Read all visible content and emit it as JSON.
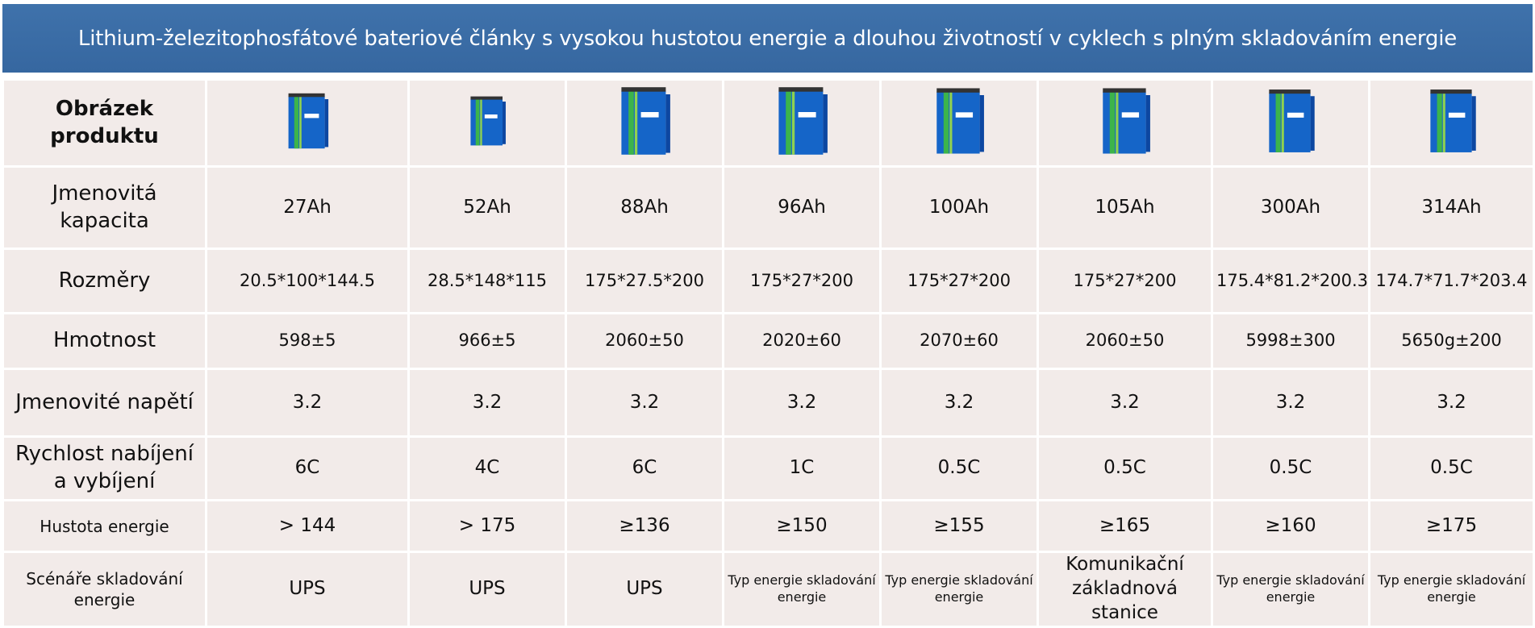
{
  "header": {
    "title": "Lithium-železitophosfátové bateriové články s vysokou hustotou energie a dlouhou životností v cyklech s plným skladováním energie"
  },
  "table": {
    "image_label": "Obrázek produktu",
    "rows": [
      {
        "label": "Jmenovitá kapacita",
        "cells": [
          "27Ah",
          "52Ah",
          "88Ah",
          "96Ah",
          "100Ah",
          "105Ah",
          "300Ah",
          "314Ah"
        ]
      },
      {
        "label": "Rozměry",
        "cells": [
          "20.5*100*144.5",
          "28.5*148*115",
          "175*27.5*200",
          "175*27*200",
          "175*27*200",
          "175*27*200",
          "175.4*81.2*200.3",
          "174.7*71.7*203.4"
        ]
      },
      {
        "label": "Hmotnost",
        "cells": [
          "598±5",
          "966±5",
          "2060±50",
          "2020±60",
          "2070±60",
          "2060±50",
          "5998±300",
          "5650g±200"
        ]
      },
      {
        "label": "Jmenovité napětí",
        "cells": [
          "3.2",
          "3.2",
          "3.2",
          "3.2",
          "3.2",
          "3.2",
          "3.2",
          "3.2"
        ]
      },
      {
        "label": "Rychlost nabíjení a vybíjení",
        "cells": [
          "6C",
          "4C",
          "6C",
          "1C",
          "0.5C",
          "0.5C",
          "0.5C",
          "0.5C"
        ]
      },
      {
        "label": "Hustota energie",
        "cells": [
          "> 144",
          "> 175",
          "≥136",
          "≥150",
          "≥155",
          "≥165",
          "≥160",
          "≥175"
        ]
      },
      {
        "label": "Scénáře skladování energie",
        "cells": [
          "UPS",
          "UPS",
          "UPS",
          "Typ energie skladování energie",
          "Typ energie skladování energie",
          "Komunikační základnová stanice",
          "Typ energie skladování energie",
          "Typ energie skladování energie"
        ]
      }
    ]
  }
}
